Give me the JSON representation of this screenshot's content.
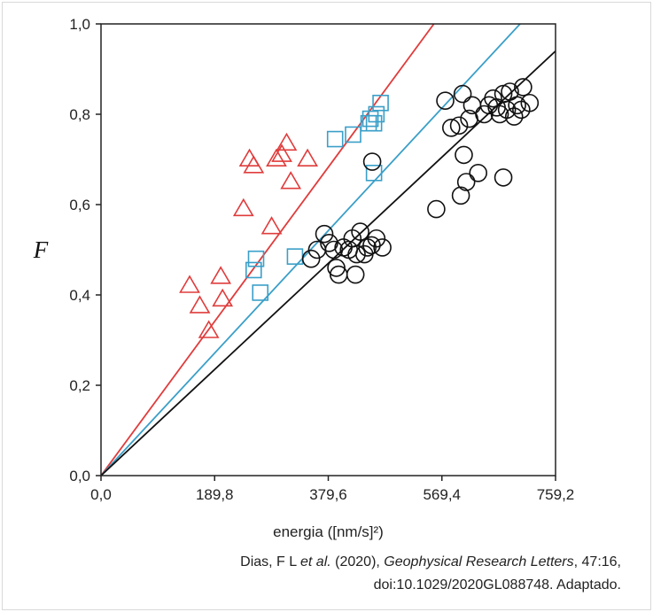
{
  "chart_data": {
    "type": "scatter",
    "xlabel": "energia ([nm/s]²)",
    "ylabel": "F",
    "xlim": [
      0,
      759.2
    ],
    "ylim": [
      0,
      1.0
    ],
    "x_ticks": [
      "0,0",
      "189,8",
      "379,6",
      "569,4",
      "759,2"
    ],
    "y_ticks": [
      "0,0",
      "0,2",
      "0,4",
      "0,6",
      "0,8",
      "1,0"
    ],
    "grid": false,
    "series": [
      {
        "marker": "triangle",
        "color": "#e03c3c",
        "points": [
          [
            148,
            0.42
          ],
          [
            165,
            0.375
          ],
          [
            180,
            0.32
          ],
          [
            200,
            0.44
          ],
          [
            203,
            0.39
          ],
          [
            238,
            0.59
          ],
          [
            248,
            0.7
          ],
          [
            255,
            0.685
          ],
          [
            285,
            0.55
          ],
          [
            293,
            0.7
          ],
          [
            302,
            0.71
          ],
          [
            310,
            0.735
          ],
          [
            317,
            0.65
          ],
          [
            345,
            0.7
          ]
        ],
        "fit_line": [
          [
            0,
            0
          ],
          [
            556,
            1.0
          ]
        ]
      },
      {
        "marker": "square",
        "color": "#3a9fc8",
        "points": [
          [
            255,
            0.455
          ],
          [
            259,
            0.48
          ],
          [
            266,
            0.405
          ],
          [
            324,
            0.485
          ],
          [
            391,
            0.745
          ],
          [
            421,
            0.755
          ],
          [
            447,
            0.78
          ],
          [
            450,
            0.79
          ],
          [
            456,
            0.78
          ],
          [
            456,
            0.67
          ],
          [
            460,
            0.8
          ],
          [
            467,
            0.825
          ]
        ],
        "fit_line": [
          [
            0,
            0
          ],
          [
            700,
            1.0
          ]
        ]
      },
      {
        "marker": "circle",
        "color": "#111111",
        "points": [
          [
            351,
            0.48
          ],
          [
            361,
            0.5
          ],
          [
            373,
            0.535
          ],
          [
            381,
            0.515
          ],
          [
            389,
            0.5
          ],
          [
            393,
            0.46
          ],
          [
            397,
            0.445
          ],
          [
            405,
            0.505
          ],
          [
            414,
            0.5
          ],
          [
            420,
            0.525
          ],
          [
            425,
            0.445
          ],
          [
            427,
            0.49
          ],
          [
            433,
            0.54
          ],
          [
            440,
            0.49
          ],
          [
            445,
            0.505
          ],
          [
            452,
            0.51
          ],
          [
            460,
            0.525
          ],
          [
            470,
            0.505
          ],
          [
            453,
            0.695
          ],
          [
            560,
            0.59
          ],
          [
            575,
            0.83
          ],
          [
            585,
            0.77
          ],
          [
            598,
            0.775
          ],
          [
            604,
            0.845
          ],
          [
            601,
            0.62
          ],
          [
            606,
            0.71
          ],
          [
            610,
            0.65
          ],
          [
            615,
            0.79
          ],
          [
            620,
            0.82
          ],
          [
            630,
            0.67
          ],
          [
            640,
            0.8
          ],
          [
            648,
            0.82
          ],
          [
            655,
            0.835
          ],
          [
            661,
            0.815
          ],
          [
            666,
            0.8
          ],
          [
            672,
            0.66
          ],
          [
            672,
            0.845
          ],
          [
            678,
            0.81
          ],
          [
            683,
            0.85
          ],
          [
            690,
            0.795
          ],
          [
            695,
            0.82
          ],
          [
            702,
            0.81
          ],
          [
            705,
            0.86
          ],
          [
            716,
            0.825
          ]
        ],
        "fit_line": [
          [
            0,
            0
          ],
          [
            759.2,
            0.94
          ]
        ]
      }
    ]
  },
  "credit": {
    "line1_plain": "Dias, F L ",
    "line1_italic": "et al.",
    "line1_year": " (2020), ",
    "line1_journal": "Geophysical Research Letters",
    "line1_tail": ", 47:16,",
    "line2": "doi:10.1029/2020GL088748. Adaptado."
  }
}
